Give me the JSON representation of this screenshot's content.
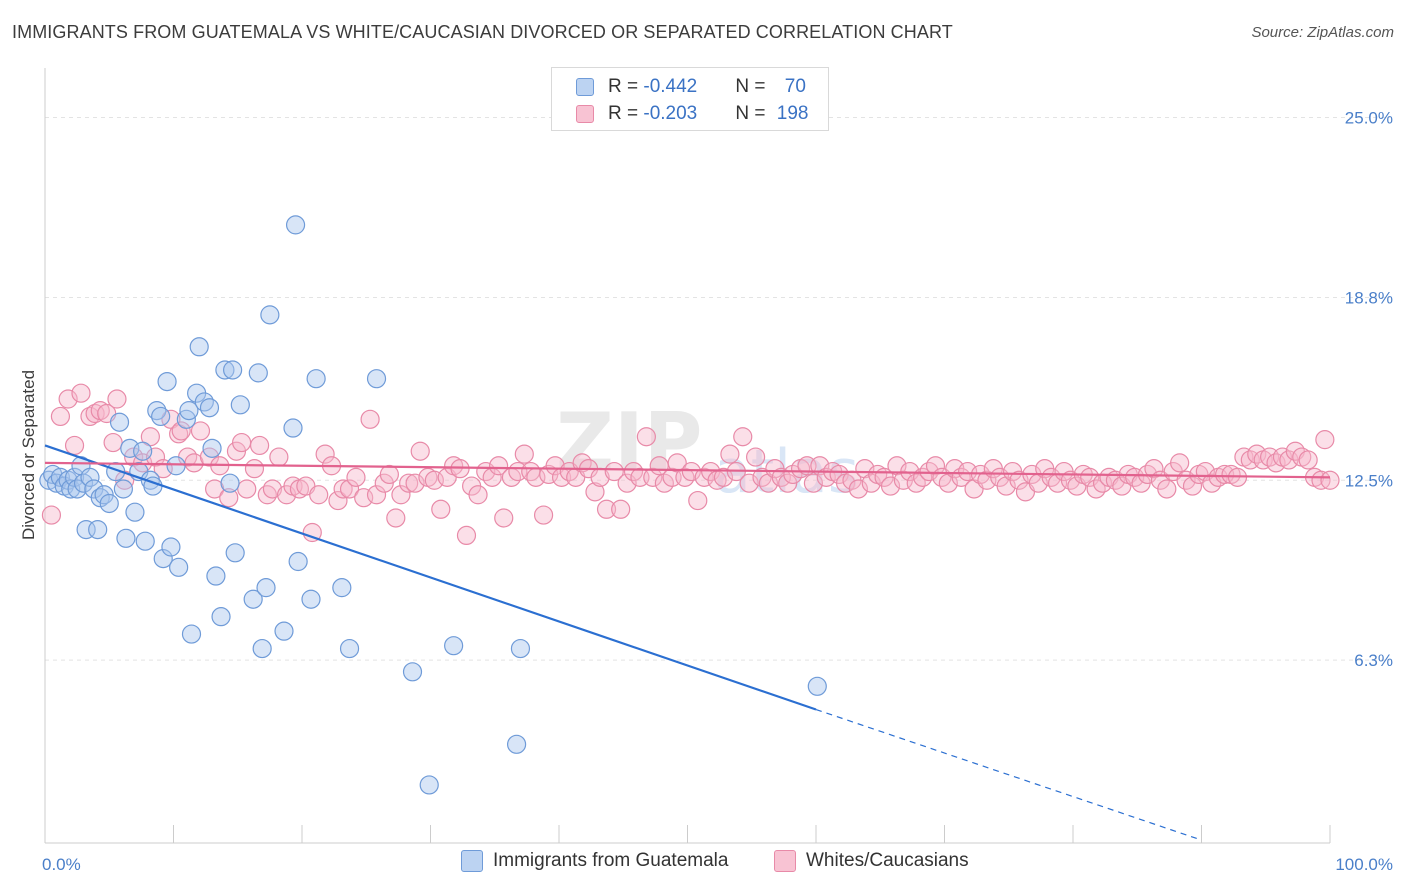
{
  "header": {
    "title": "IMMIGRANTS FROM GUATEMALA VS WHITE/CAUCASIAN DIVORCED OR SEPARATED CORRELATION CHART",
    "source": "Source: ZipAtlas.com"
  },
  "legend_top": {
    "row1": {
      "r_label": "R = ",
      "r_value": "-0.442",
      "n_label": "N = ",
      "n_value": "70"
    },
    "row2": {
      "r_label": "R = ",
      "r_value": "-0.203",
      "n_label": "N = ",
      "n_value": "198"
    }
  },
  "colors": {
    "blue_fill": "#a9c6ee",
    "blue_stroke": "#6f9bd8",
    "blue_line": "#2b6fd1",
    "pink_fill": "#f6b7cb",
    "pink_stroke": "#e88aa8",
    "pink_line": "#e2628e",
    "tick_text": "#4a7fc9",
    "grid": "#e3e3e3"
  },
  "chart_data": {
    "type": "scatter",
    "title": "IMMIGRANTS FROM GUATEMALA VS WHITE/CAUCASIAN DIVORCED OR SEPARATED CORRELATION CHART",
    "xlabel": "",
    "ylabel": "Divorced or Separated",
    "xlim": [
      0,
      100
    ],
    "ylim": [
      0,
      26.5
    ],
    "x_tick_labels": [
      "0.0%",
      "100.0%"
    ],
    "y_ticks": [
      6.3,
      12.5,
      18.8,
      25.0
    ],
    "y_tick_labels": [
      "6.3%",
      "12.5%",
      "18.8%",
      "25.0%"
    ],
    "grid": "horizontal dashed",
    "legend": "bottom-center",
    "series": [
      {
        "name": "Immigrants from Guatemala",
        "color": "blue",
        "R": -0.442,
        "N": 70,
        "trend": {
          "x0": 0,
          "y0": 13.7,
          "x1": 60,
          "y1": 4.6,
          "dashed_to_x": 90,
          "dashed_to_y": 0.1
        },
        "points": [
          [
            0.3,
            12.5
          ],
          [
            0.6,
            12.7
          ],
          [
            0.9,
            12.4
          ],
          [
            1.2,
            12.6
          ],
          [
            1.5,
            12.3
          ],
          [
            1.8,
            12.5
          ],
          [
            2.0,
            12.2
          ],
          [
            2.3,
            12.6
          ],
          [
            2.5,
            12.2
          ],
          [
            2.8,
            13.0
          ],
          [
            3.0,
            12.4
          ],
          [
            3.2,
            10.8
          ],
          [
            3.5,
            12.6
          ],
          [
            3.8,
            12.2
          ],
          [
            4.1,
            10.8
          ],
          [
            4.3,
            11.9
          ],
          [
            4.6,
            12.0
          ],
          [
            5.0,
            11.7
          ],
          [
            5.5,
            12.8
          ],
          [
            5.8,
            14.5
          ],
          [
            6.1,
            12.2
          ],
          [
            6.3,
            10.5
          ],
          [
            6.6,
            13.6
          ],
          [
            7.0,
            11.4
          ],
          [
            7.3,
            12.8
          ],
          [
            7.6,
            13.5
          ],
          [
            7.8,
            10.4
          ],
          [
            8.2,
            12.5
          ],
          [
            8.4,
            12.3
          ],
          [
            8.7,
            14.9
          ],
          [
            9.0,
            14.7
          ],
          [
            9.2,
            9.8
          ],
          [
            9.5,
            15.9
          ],
          [
            9.8,
            10.2
          ],
          [
            10.2,
            13.0
          ],
          [
            10.4,
            9.5
          ],
          [
            11.0,
            14.6
          ],
          [
            11.2,
            14.9
          ],
          [
            11.4,
            7.2
          ],
          [
            11.8,
            15.5
          ],
          [
            12.0,
            17.1
          ],
          [
            12.4,
            15.2
          ],
          [
            12.8,
            15.0
          ],
          [
            13.0,
            13.6
          ],
          [
            13.3,
            9.2
          ],
          [
            13.7,
            7.8
          ],
          [
            14.0,
            16.3
          ],
          [
            14.4,
            12.4
          ],
          [
            14.6,
            16.3
          ],
          [
            14.8,
            10.0
          ],
          [
            15.2,
            15.1
          ],
          [
            16.2,
            8.4
          ],
          [
            16.6,
            16.2
          ],
          [
            16.9,
            6.7
          ],
          [
            17.2,
            8.8
          ],
          [
            17.5,
            18.2
          ],
          [
            18.6,
            7.3
          ],
          [
            19.3,
            14.3
          ],
          [
            19.5,
            21.3
          ],
          [
            19.7,
            9.7
          ],
          [
            20.7,
            8.4
          ],
          [
            21.1,
            16.0
          ],
          [
            23.1,
            8.8
          ],
          [
            23.7,
            6.7
          ],
          [
            25.8,
            16.0
          ],
          [
            28.6,
            5.9
          ],
          [
            29.9,
            2.0
          ],
          [
            31.8,
            6.8
          ],
          [
            36.7,
            3.4
          ],
          [
            37.0,
            6.7
          ],
          [
            60.1,
            5.4
          ]
        ]
      },
      {
        "name": "Whites/Caucasians",
        "color": "pink",
        "R": -0.203,
        "N": 198,
        "trend": {
          "x0": 0,
          "y0": 13.1,
          "x1": 100,
          "y1": 12.6
        },
        "points": [
          [
            0.5,
            11.3
          ],
          [
            1.2,
            14.7
          ],
          [
            1.8,
            15.3
          ],
          [
            2.3,
            13.7
          ],
          [
            2.8,
            15.5
          ],
          [
            3.5,
            14.7
          ],
          [
            3.9,
            14.8
          ],
          [
            4.3,
            14.9
          ],
          [
            4.8,
            14.8
          ],
          [
            5.3,
            13.8
          ],
          [
            5.6,
            15.3
          ],
          [
            6.2,
            12.5
          ],
          [
            6.9,
            13.3
          ],
          [
            7.6,
            13.1
          ],
          [
            8.2,
            14.0
          ],
          [
            8.6,
            13.3
          ],
          [
            9.2,
            12.9
          ],
          [
            9.8,
            14.6
          ],
          [
            10.4,
            14.1
          ],
          [
            10.6,
            14.2
          ],
          [
            11.1,
            13.3
          ],
          [
            11.6,
            13.1
          ],
          [
            12.1,
            14.2
          ],
          [
            12.8,
            13.3
          ],
          [
            13.2,
            12.2
          ],
          [
            13.6,
            13.0
          ],
          [
            14.3,
            11.9
          ],
          [
            14.9,
            13.5
          ],
          [
            15.3,
            13.8
          ],
          [
            15.7,
            12.2
          ],
          [
            16.3,
            12.9
          ],
          [
            16.7,
            13.7
          ],
          [
            17.3,
            12.0
          ],
          [
            17.7,
            12.2
          ],
          [
            18.2,
            13.3
          ],
          [
            18.8,
            12.0
          ],
          [
            19.3,
            12.3
          ],
          [
            19.8,
            12.2
          ],
          [
            20.3,
            12.3
          ],
          [
            20.8,
            10.7
          ],
          [
            21.3,
            12.0
          ],
          [
            21.8,
            13.4
          ],
          [
            22.3,
            13.0
          ],
          [
            22.8,
            11.8
          ],
          [
            23.2,
            12.2
          ],
          [
            23.7,
            12.2
          ],
          [
            24.2,
            12.6
          ],
          [
            24.8,
            11.9
          ],
          [
            25.3,
            14.6
          ],
          [
            25.8,
            12.0
          ],
          [
            26.4,
            12.4
          ],
          [
            26.8,
            12.7
          ],
          [
            27.3,
            11.2
          ],
          [
            27.7,
            12.0
          ],
          [
            28.3,
            12.4
          ],
          [
            28.8,
            12.4
          ],
          [
            29.2,
            13.5
          ],
          [
            29.8,
            12.6
          ],
          [
            30.3,
            12.5
          ],
          [
            30.8,
            11.5
          ],
          [
            31.3,
            12.6
          ],
          [
            31.8,
            13.0
          ],
          [
            32.3,
            12.9
          ],
          [
            32.8,
            10.6
          ],
          [
            33.2,
            12.3
          ],
          [
            33.7,
            12.0
          ],
          [
            34.3,
            12.8
          ],
          [
            34.8,
            12.6
          ],
          [
            35.3,
            13.0
          ],
          [
            35.7,
            11.2
          ],
          [
            36.3,
            12.6
          ],
          [
            36.8,
            12.8
          ],
          [
            37.3,
            13.4
          ],
          [
            37.8,
            12.8
          ],
          [
            38.2,
            12.6
          ],
          [
            38.8,
            11.3
          ],
          [
            39.2,
            12.7
          ],
          [
            39.7,
            13.0
          ],
          [
            40.2,
            12.6
          ],
          [
            40.8,
            12.8
          ],
          [
            41.3,
            12.6
          ],
          [
            41.8,
            13.1
          ],
          [
            42.3,
            12.9
          ],
          [
            42.8,
            12.1
          ],
          [
            43.2,
            12.6
          ],
          [
            43.7,
            11.5
          ],
          [
            44.3,
            12.8
          ],
          [
            44.8,
            11.5
          ],
          [
            45.3,
            12.4
          ],
          [
            45.8,
            12.8
          ],
          [
            46.3,
            12.6
          ],
          [
            46.8,
            14.0
          ],
          [
            47.3,
            12.6
          ],
          [
            47.8,
            13.0
          ],
          [
            48.2,
            12.4
          ],
          [
            48.8,
            12.6
          ],
          [
            49.2,
            13.1
          ],
          [
            49.8,
            12.6
          ],
          [
            50.3,
            12.8
          ],
          [
            50.8,
            11.8
          ],
          [
            51.3,
            12.6
          ],
          [
            51.8,
            12.8
          ],
          [
            52.3,
            12.5
          ],
          [
            52.8,
            12.6
          ],
          [
            53.3,
            13.4
          ],
          [
            53.8,
            12.8
          ],
          [
            54.3,
            14.0
          ],
          [
            54.8,
            12.4
          ],
          [
            55.3,
            13.3
          ],
          [
            55.8,
            12.6
          ],
          [
            56.3,
            12.4
          ],
          [
            56.8,
            12.9
          ],
          [
            57.3,
            12.6
          ],
          [
            57.8,
            12.4
          ],
          [
            58.2,
            12.7
          ],
          [
            58.8,
            12.9
          ],
          [
            59.3,
            13.0
          ],
          [
            59.8,
            12.4
          ],
          [
            60.3,
            13.0
          ],
          [
            60.8,
            12.6
          ],
          [
            61.3,
            12.8
          ],
          [
            61.8,
            12.7
          ],
          [
            62.3,
            12.4
          ],
          [
            62.8,
            12.5
          ],
          [
            63.3,
            12.2
          ],
          [
            63.8,
            12.9
          ],
          [
            64.3,
            12.4
          ],
          [
            64.8,
            12.7
          ],
          [
            65.3,
            12.6
          ],
          [
            65.8,
            12.3
          ],
          [
            66.3,
            13.0
          ],
          [
            66.8,
            12.5
          ],
          [
            67.3,
            12.8
          ],
          [
            67.8,
            12.4
          ],
          [
            68.3,
            12.6
          ],
          [
            68.8,
            12.8
          ],
          [
            69.3,
            13.0
          ],
          [
            69.8,
            12.6
          ],
          [
            70.3,
            12.4
          ],
          [
            70.8,
            12.9
          ],
          [
            71.3,
            12.6
          ],
          [
            71.8,
            12.8
          ],
          [
            72.3,
            12.2
          ],
          [
            72.8,
            12.7
          ],
          [
            73.3,
            12.5
          ],
          [
            73.8,
            12.9
          ],
          [
            74.3,
            12.6
          ],
          [
            74.8,
            12.3
          ],
          [
            75.3,
            12.8
          ],
          [
            75.8,
            12.5
          ],
          [
            76.3,
            12.1
          ],
          [
            76.8,
            12.7
          ],
          [
            77.3,
            12.4
          ],
          [
            77.8,
            12.9
          ],
          [
            78.3,
            12.6
          ],
          [
            78.8,
            12.4
          ],
          [
            79.3,
            12.8
          ],
          [
            79.8,
            12.5
          ],
          [
            80.3,
            12.3
          ],
          [
            80.8,
            12.7
          ],
          [
            81.3,
            12.6
          ],
          [
            81.8,
            12.2
          ],
          [
            82.3,
            12.4
          ],
          [
            82.8,
            12.6
          ],
          [
            83.3,
            12.5
          ],
          [
            83.8,
            12.3
          ],
          [
            84.3,
            12.7
          ],
          [
            84.8,
            12.6
          ],
          [
            85.3,
            12.4
          ],
          [
            85.8,
            12.7
          ],
          [
            86.3,
            12.9
          ],
          [
            86.8,
            12.5
          ],
          [
            87.3,
            12.2
          ],
          [
            87.8,
            12.8
          ],
          [
            88.3,
            13.1
          ],
          [
            88.8,
            12.5
          ],
          [
            89.3,
            12.3
          ],
          [
            89.8,
            12.7
          ],
          [
            90.3,
            12.8
          ],
          [
            90.8,
            12.4
          ],
          [
            91.3,
            12.6
          ],
          [
            91.8,
            12.7
          ],
          [
            92.3,
            12.7
          ],
          [
            92.8,
            12.6
          ],
          [
            93.3,
            13.3
          ],
          [
            93.8,
            13.2
          ],
          [
            94.3,
            13.4
          ],
          [
            94.8,
            13.2
          ],
          [
            95.3,
            13.3
          ],
          [
            95.8,
            13.1
          ],
          [
            96.3,
            13.3
          ],
          [
            96.8,
            13.2
          ],
          [
            97.3,
            13.5
          ],
          [
            97.8,
            13.3
          ],
          [
            98.3,
            13.2
          ],
          [
            98.8,
            12.6
          ],
          [
            99.3,
            12.5
          ],
          [
            99.6,
            13.9
          ],
          [
            100.0,
            12.5
          ]
        ]
      }
    ]
  },
  "legend_bottom": {
    "items": [
      {
        "label": "Immigrants from Guatemala"
      },
      {
        "label": "Whites/Caucasians"
      }
    ]
  }
}
